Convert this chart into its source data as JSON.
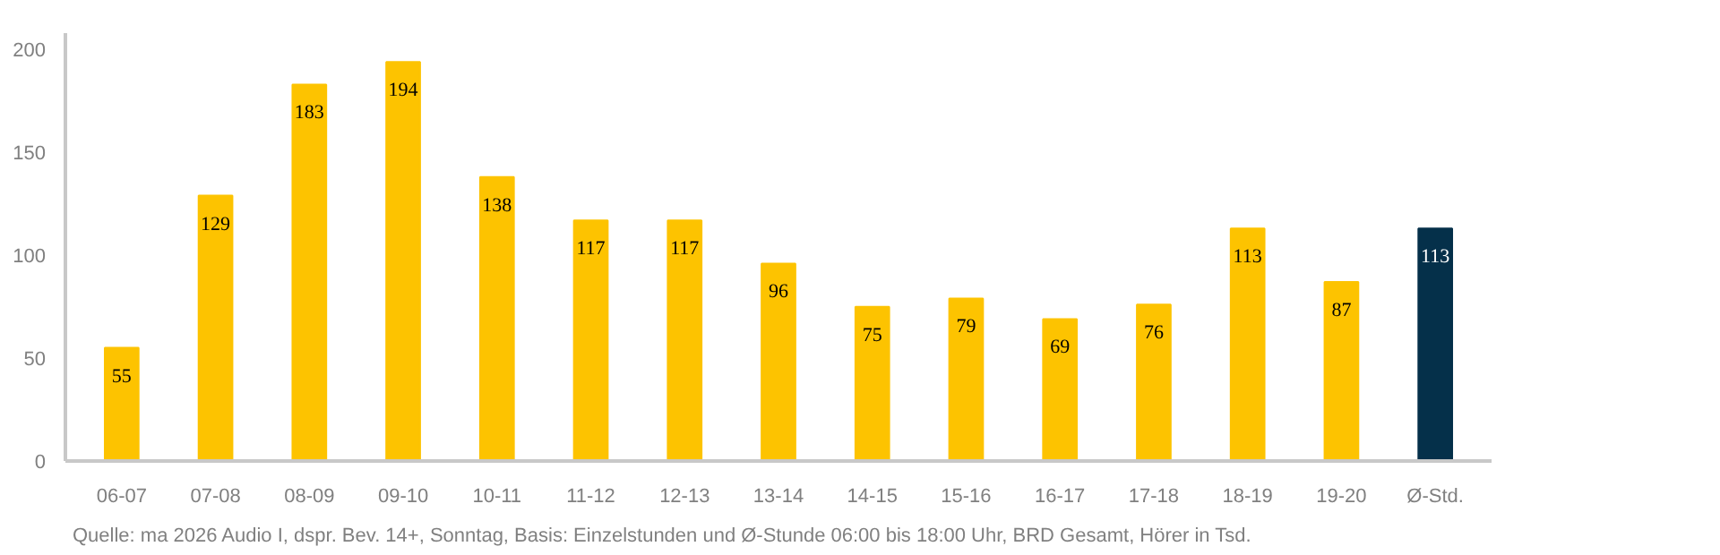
{
  "chart_data": {
    "type": "bar",
    "categories": [
      "06-07",
      "07-08",
      "08-09",
      "09-10",
      "10-11",
      "11-12",
      "12-13",
      "13-14",
      "14-15",
      "15-16",
      "16-17",
      "17-18",
      "18-19",
      "19-20",
      "Ø-Std."
    ],
    "values": [
      55,
      129,
      183,
      194,
      138,
      117,
      117,
      96,
      75,
      79,
      69,
      76,
      113,
      87,
      113
    ],
    "colors": [
      "#fdc300",
      "#fdc300",
      "#fdc300",
      "#fdc300",
      "#fdc300",
      "#fdc300",
      "#fdc300",
      "#fdc300",
      "#fdc300",
      "#fdc300",
      "#fdc300",
      "#fdc300",
      "#fdc300",
      "#fdc300",
      "#05304a"
    ],
    "ylim": [
      0,
      208
    ],
    "yticks": [
      0,
      50,
      100,
      150,
      200
    ],
    "grid": false,
    "data_labels": true,
    "annotations": [
      "Quelle: ma 2026 Audio I, dspr. Bev. 14+, Sonntag, Basis: Einzelstunden und Ø-Stunde 06:00 bis 18:00 Uhr, BRD Gesamt, Hörer in Tsd."
    ]
  }
}
